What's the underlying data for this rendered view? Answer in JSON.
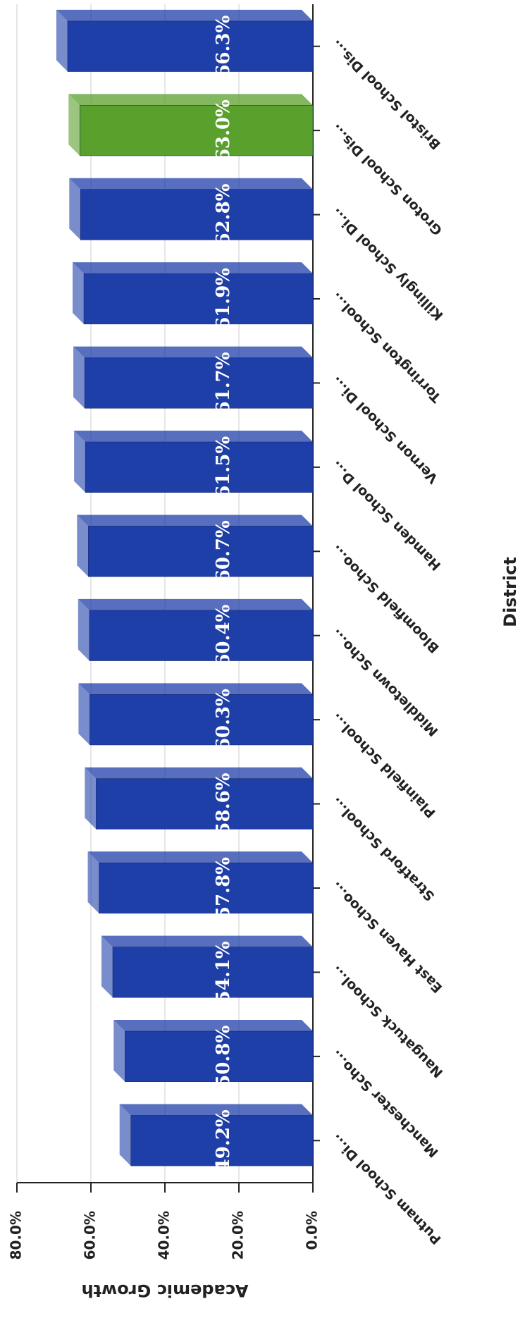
{
  "chart_data": {
    "type": "bar",
    "x_label": "District",
    "y_label": "Academic Growth",
    "categories": [
      "Putnam School Di...",
      "Manchester Scho...",
      "Naugatuck School...",
      "East Haven Schoo...",
      "Stratford School...",
      "Plainfield School...",
      "Middletown Scho...",
      "Bloomfield Schoo...",
      "Hamden School D...",
      "Vernon School Di...",
      "Torrington School...",
      "Killingly School Di...",
      "Groton School Dis...",
      "Bristol School Dis..."
    ],
    "values": [
      49.2,
      50.8,
      54.1,
      57.8,
      58.6,
      60.3,
      60.4,
      60.7,
      61.5,
      61.7,
      61.9,
      62.8,
      63.0,
      66.3
    ],
    "value_labels": [
      "49.2%",
      "50.8%",
      "54.1%",
      "57.8%",
      "58.6%",
      "60.3%",
      "60.4%",
      "60.7%",
      "61.5%",
      "61.7%",
      "61.9%",
      "62.8%",
      "63.0%",
      "66.3%"
    ],
    "colors": [
      "#1f3fa8",
      "#1f3fa8",
      "#1f3fa8",
      "#1f3fa8",
      "#1f3fa8",
      "#1f3fa8",
      "#1f3fa8",
      "#1f3fa8",
      "#1f3fa8",
      "#1f3fa8",
      "#1f3fa8",
      "#1f3fa8",
      "#5aa02c",
      "#1f3fa8"
    ],
    "ylim": [
      0,
      80
    ],
    "yticks": [
      {
        "value": 0,
        "label": "0.0%"
      },
      {
        "value": 20,
        "label": "20.0%"
      },
      {
        "value": 40,
        "label": "40.0%"
      },
      {
        "value": 60,
        "label": "60.0%"
      },
      {
        "value": 80,
        "label": "80.0%"
      }
    ],
    "grid": true
  }
}
